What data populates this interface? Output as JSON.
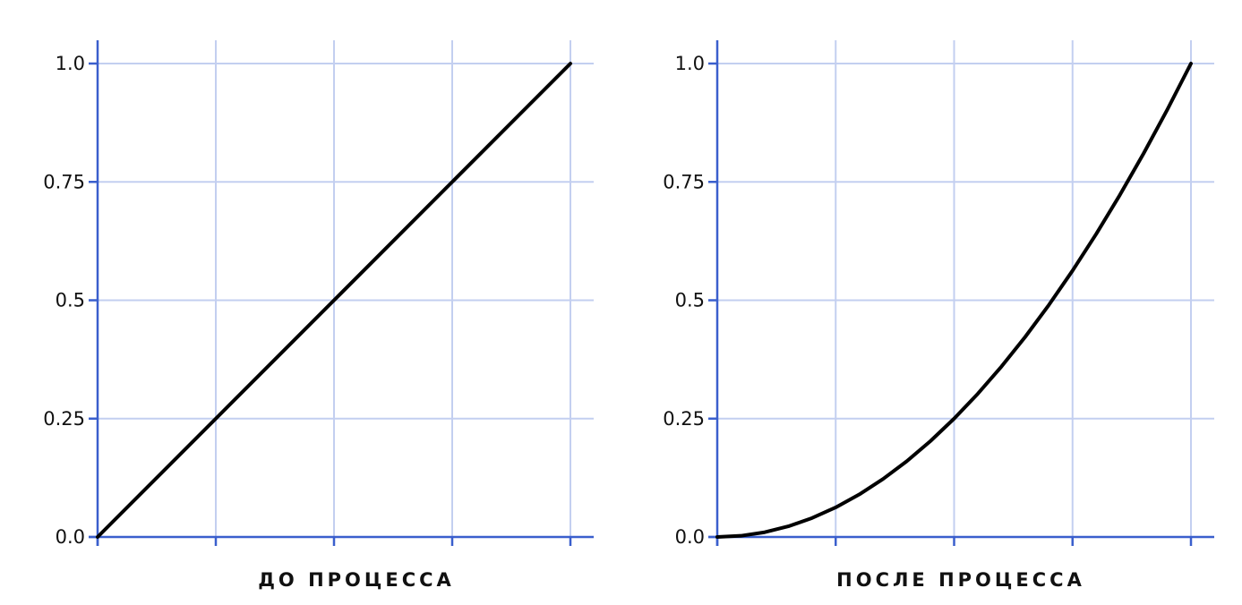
{
  "chart_data": [
    {
      "type": "line",
      "xlabel": "ДО ПРОЦЕССА",
      "xlim": [
        0,
        1
      ],
      "ylim": [
        0,
        1
      ],
      "y_ticks": [
        "0.0",
        "0.25",
        "0.5",
        "0.75",
        "1.0"
      ],
      "x_ticks_labeled": false,
      "grid": true,
      "series": [
        {
          "x": [
            0,
            0.25,
            0.5,
            0.75,
            1.0
          ],
          "y": [
            0,
            0.25,
            0.5,
            0.75,
            1.0
          ]
        }
      ]
    },
    {
      "type": "line",
      "xlabel": "ПОСЛЕ ПРОЦЕССА",
      "xlim": [
        0,
        1
      ],
      "ylim": [
        0,
        1
      ],
      "y_ticks": [
        "0.0",
        "0.25",
        "0.5",
        "0.75",
        "1.0"
      ],
      "x_ticks_labeled": false,
      "grid": true,
      "series": [
        {
          "x": [
            0,
            0.05,
            0.1,
            0.15,
            0.2,
            0.25,
            0.3,
            0.35,
            0.4,
            0.45,
            0.5,
            0.55,
            0.6,
            0.65,
            0.7,
            0.75,
            0.8,
            0.85,
            0.9,
            0.95,
            1.0
          ],
          "y": [
            0,
            0.0025,
            0.01,
            0.0225,
            0.04,
            0.0625,
            0.09,
            0.1225,
            0.16,
            0.2025,
            0.25,
            0.3025,
            0.36,
            0.4225,
            0.49,
            0.5625,
            0.64,
            0.7225,
            0.81,
            0.9025,
            1.0
          ]
        }
      ]
    }
  ],
  "colors": {
    "axis": "#3a5fcd",
    "grid": "#c3cff0",
    "line": "#000000",
    "text": "#111111"
  }
}
